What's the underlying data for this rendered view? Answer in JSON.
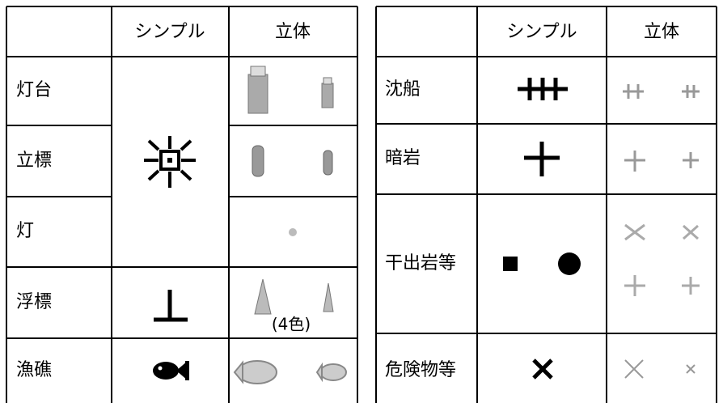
{
  "left_table": {
    "header": {
      "simple": "シンプル",
      "solid": "立体"
    },
    "rows": [
      "灯台",
      "立標",
      "灯",
      "浮標",
      "漁礁"
    ],
    "note": "(4色)"
  },
  "right_table": {
    "header": {
      "simple": "シンプル",
      "solid": "立体"
    },
    "rows": [
      "沈船",
      "暗岩",
      "干出岩等",
      "危険物等"
    ]
  }
}
